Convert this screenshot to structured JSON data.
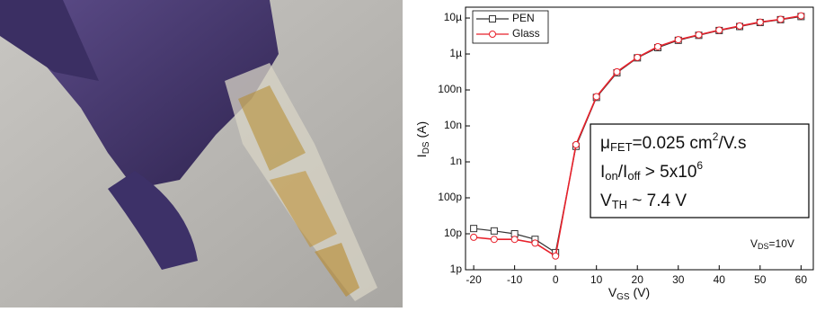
{
  "chart_data": {
    "type": "line",
    "x_label": [
      "V",
      "GS",
      " (V)"
    ],
    "y_label": [
      "I",
      "DS",
      " (A)"
    ],
    "ylog": true,
    "xlim": [
      -22,
      63
    ],
    "ylim": [
      1e-12,
      2e-05
    ],
    "xticks": [
      -20,
      -10,
      0,
      10,
      20,
      30,
      40,
      50,
      60
    ],
    "yticks": [
      {
        "value": 1e-12,
        "label": "1p"
      },
      {
        "value": 1e-11,
        "label": "10p"
      },
      {
        "value": 1e-10,
        "label": "100p"
      },
      {
        "value": 1e-09,
        "label": "1n"
      },
      {
        "value": 1e-08,
        "label": "10n"
      },
      {
        "value": 1e-07,
        "label": "100n"
      },
      {
        "value": 1e-06,
        "label": "1µ"
      },
      {
        "value": 1e-05,
        "label": "10µ"
      }
    ],
    "x": [
      -20,
      -15,
      -10,
      -5,
      0,
      5,
      10,
      15,
      20,
      25,
      30,
      35,
      40,
      45,
      50,
      55,
      60
    ],
    "series": [
      {
        "name": "PEN",
        "color": "#333333",
        "marker": "square",
        "values": [
          1.4e-11,
          1.2e-11,
          1e-11,
          7e-12,
          3e-12,
          2.7e-09,
          6.2e-08,
          3e-07,
          7.8e-07,
          1.5e-06,
          2.4e-06,
          3.3e-06,
          4.5e-06,
          5.8e-06,
          7.5e-06,
          9e-06,
          1.1e-05
        ]
      },
      {
        "name": "Glass",
        "color": "#e8212b",
        "marker": "circle",
        "values": [
          8e-12,
          7e-12,
          7e-12,
          5.5e-12,
          2.4e-12,
          3e-09,
          6.5e-08,
          3.2e-07,
          8e-07,
          1.6e-06,
          2.5e-06,
          3.4e-06,
          4.6e-06,
          6e-06,
          7.7e-06,
          9.2e-06,
          1.15e-05
        ]
      }
    ],
    "annotations": [
      [
        "μ",
        "FET",
        "=0.025 cm",
        "2",
        "/V.s"
      ],
      [
        "I",
        "on",
        "/I",
        "off",
        " > 5x10",
        "6"
      ],
      [
        "V",
        "TH",
        " ~ 7.4 V"
      ]
    ],
    "condition": [
      "V",
      "DS",
      "=10V"
    ]
  }
}
